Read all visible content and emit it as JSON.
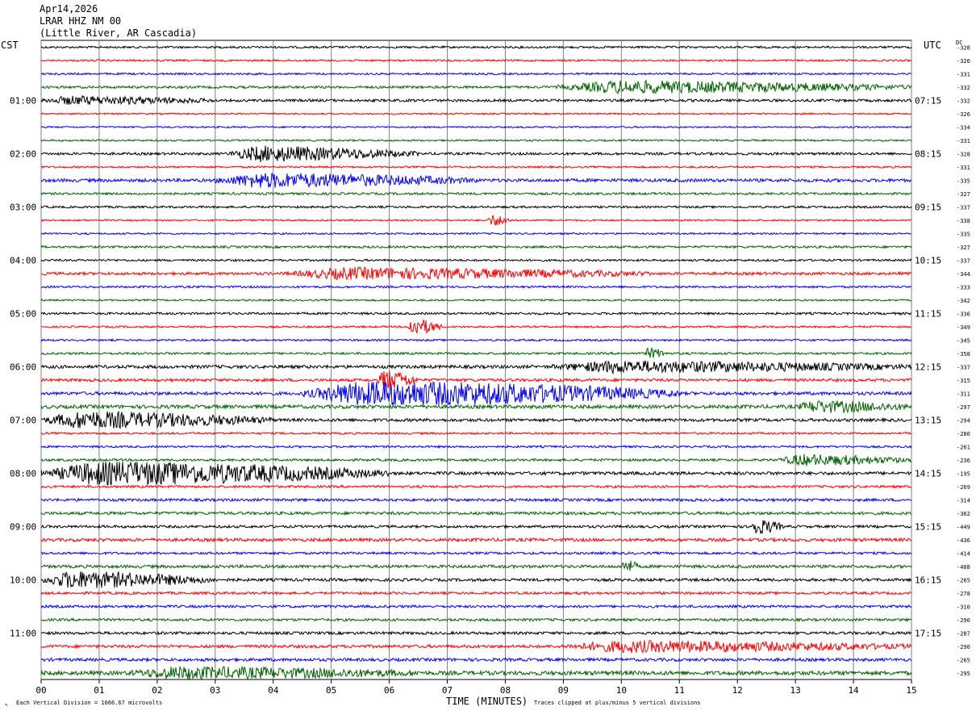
{
  "header": {
    "date": "Apr14,2026",
    "station": "LRAR HHZ NM 00",
    "location": "(Little River, AR Cascadia)"
  },
  "left_zone_label": "CST",
  "right_zone_label": "UTC",
  "dc_label": "DC",
  "footer": {
    "scale_note": "Each Vertical Division = 1666.67 microvolts",
    "axis_title": "TIME (MINUTES)",
    "clip_note": "Traces clipped at plus/minus 5 vertical divisions"
  },
  "colors": {
    "trace_cycle": [
      "#000000",
      "#ff0000",
      "#0000ff",
      "#006400"
    ],
    "grid": "#808080"
  },
  "chart_data": {
    "type": "line",
    "title": "",
    "xlabel": "TIME (MINUTES)",
    "ylabel": "",
    "xlim": [
      0,
      15
    ],
    "x_ticks": [
      "00",
      "01",
      "02",
      "03",
      "04",
      "05",
      "06",
      "07",
      "08",
      "09",
      "10",
      "11",
      "12",
      "13",
      "14",
      "15"
    ],
    "left_hour_labels": [
      {
        "row": 4,
        "label": "01:00"
      },
      {
        "row": 8,
        "label": "02:00"
      },
      {
        "row": 12,
        "label": "03:00"
      },
      {
        "row": 16,
        "label": "04:00"
      },
      {
        "row": 20,
        "label": "05:00"
      },
      {
        "row": 24,
        "label": "06:00"
      },
      {
        "row": 28,
        "label": "07:00"
      },
      {
        "row": 32,
        "label": "08:00"
      },
      {
        "row": 36,
        "label": "09:00"
      },
      {
        "row": 40,
        "label": "10:00"
      },
      {
        "row": 44,
        "label": "11:00"
      }
    ],
    "right_hour_labels": [
      {
        "row": 4,
        "label": "07:15"
      },
      {
        "row": 8,
        "label": "08:15"
      },
      {
        "row": 12,
        "label": "09:15"
      },
      {
        "row": 16,
        "label": "10:15"
      },
      {
        "row": 20,
        "label": "11:15"
      },
      {
        "row": 24,
        "label": "12:15"
      },
      {
        "row": 28,
        "label": "13:15"
      },
      {
        "row": 32,
        "label": "14:15"
      },
      {
        "row": 36,
        "label": "15:15"
      },
      {
        "row": 40,
        "label": "16:15"
      },
      {
        "row": 44,
        "label": "17:15"
      }
    ],
    "dc_offsets": [
      "-328",
      "-326",
      "-331",
      "-332",
      "-332",
      "-326",
      "-334",
      "-331",
      "-328",
      "-331",
      "-335",
      "-327",
      "-337",
      "-338",
      "-335",
      "-327",
      "-337",
      "-344",
      "-333",
      "-342",
      "-336",
      "-349",
      "-345",
      "-358",
      "-337",
      "-315",
      "-311",
      "-297",
      "-294",
      "-280",
      "-261",
      "-236",
      "-195",
      "-269",
      "-314",
      "-362",
      "-449",
      "-436",
      "-414",
      "-408",
      "-265",
      "-278",
      "-310",
      "-290",
      "-287",
      "-290",
      "-265",
      "-295"
    ],
    "noise_levels": [
      1.3,
      1.2,
      1.2,
      1.5,
      1.6,
      1.0,
      1.0,
      1.1,
      1.6,
      1.2,
      2.0,
      1.4,
      1.3,
      1.1,
      1.1,
      1.4,
      1.3,
      1.8,
      1.3,
      1.1,
      1.4,
      1.2,
      1.2,
      1.4,
      2.0,
      1.8,
      2.0,
      2.2,
      1.9,
      1.3,
      1.3,
      1.5,
      2.0,
      1.5,
      1.7,
      1.8,
      1.6,
      2.0,
      1.5,
      1.9,
      1.8,
      1.6,
      1.6,
      1.6,
      1.7,
      1.9,
      1.9,
      2.5
    ],
    "events": [
      {
        "row": 3,
        "start": 8.9,
        "end": 15.0,
        "amp": 8
      },
      {
        "row": 4,
        "start": 0.0,
        "end": 3.0,
        "amp": 5
      },
      {
        "row": 8,
        "start": 3.2,
        "end": 6.5,
        "amp": 10
      },
      {
        "row": 10,
        "start": 3.0,
        "end": 7.5,
        "amp": 9
      },
      {
        "row": 13,
        "start": 7.7,
        "end": 8.1,
        "amp": 8
      },
      {
        "row": 17,
        "start": 4.2,
        "end": 10.5,
        "amp": 7
      },
      {
        "row": 21,
        "start": 6.3,
        "end": 6.9,
        "amp": 12
      },
      {
        "row": 23,
        "start": 10.4,
        "end": 10.8,
        "amp": 7
      },
      {
        "row": 24,
        "start": 8.8,
        "end": 15.0,
        "amp": 7
      },
      {
        "row": 25,
        "start": 5.8,
        "end": 6.5,
        "amp": 14
      },
      {
        "row": 26,
        "start": 4.5,
        "end": 11.0,
        "amp": 18
      },
      {
        "row": 27,
        "start": 13.0,
        "end": 15.0,
        "amp": 7
      },
      {
        "row": 28,
        "start": 0.0,
        "end": 4.0,
        "amp": 11
      },
      {
        "row": 31,
        "start": 12.7,
        "end": 15.0,
        "amp": 7
      },
      {
        "row": 32,
        "start": 0.0,
        "end": 6.0,
        "amp": 16
      },
      {
        "row": 36,
        "start": 12.2,
        "end": 12.8,
        "amp": 10
      },
      {
        "row": 39,
        "start": 10.0,
        "end": 10.3,
        "amp": 9
      },
      {
        "row": 40,
        "start": 0.0,
        "end": 3.0,
        "amp": 11
      },
      {
        "row": 45,
        "start": 9.0,
        "end": 15.0,
        "amp": 7
      },
      {
        "row": 47,
        "start": 1.5,
        "end": 6.5,
        "amp": 7
      }
    ]
  }
}
